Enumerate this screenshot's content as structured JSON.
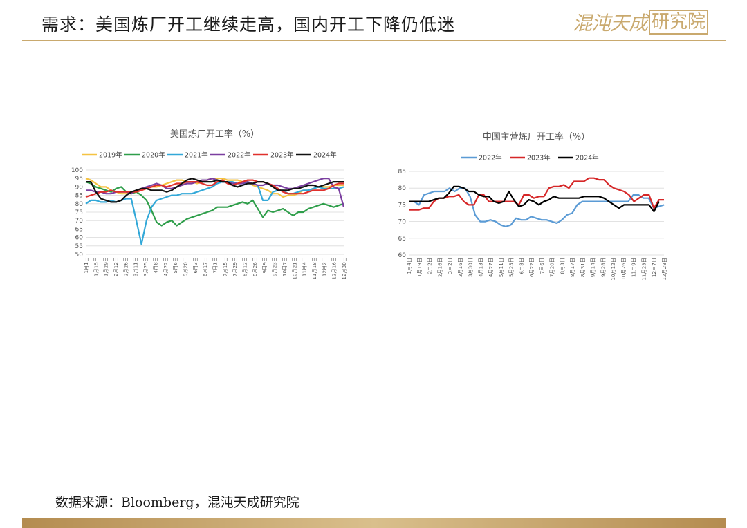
{
  "header": {
    "title": "需求：美国炼厂开工继续走高，国内开工下降仍低迷",
    "logo_text": "混沌天成",
    "logo_box_text": "研究院"
  },
  "footer": {
    "source": "数据来源：Bloomberg，混沌天成研究院"
  },
  "colors": {
    "accent": "#c9a96e"
  },
  "chart_data": [
    {
      "type": "line",
      "title": "美国炼厂开工率（%）",
      "ylim": [
        50,
        100
      ],
      "yticks": [
        50,
        55,
        60,
        65,
        70,
        75,
        80,
        85,
        90,
        95,
        100
      ],
      "x_tick_labels": [
        "1月1日",
        "1月15日",
        "1月29日",
        "2月12日",
        "2月26日",
        "3月11日",
        "3月25日",
        "4月8日",
        "4月22日",
        "5月6日",
        "5月20日",
        "6月3日",
        "6月17日",
        "7月1日",
        "7月15日",
        "7月29日",
        "8月12日",
        "8月26日",
        "9月9日",
        "9月23日",
        "10月7日",
        "10月21日",
        "11月4日",
        "11月18日",
        "12月2日",
        "12月16日",
        "12月30日"
      ],
      "grid": true,
      "legend_position": "top",
      "series": [
        {
          "name": "2019年",
          "color": "#f5c342",
          "values": [
            95,
            94,
            92,
            90,
            90,
            88,
            87,
            86,
            86,
            86,
            87,
            88,
            89,
            90,
            90,
            91,
            92,
            93,
            94,
            94,
            93,
            93,
            92,
            93,
            94,
            95,
            95,
            95,
            94,
            94,
            94,
            93,
            93,
            91,
            90,
            89,
            88,
            86,
            86,
            84,
            85,
            85,
            86,
            88,
            88,
            89,
            90,
            90,
            90,
            91,
            91,
            91
          ]
        },
        {
          "name": "2020年",
          "color": "#2e9e4a",
          "values": [
            93,
            92,
            90,
            89,
            88,
            87,
            89,
            90,
            87,
            86,
            87,
            85,
            82,
            76,
            69,
            67,
            69,
            70,
            67,
            69,
            71,
            72,
            73,
            74,
            75,
            76,
            78,
            78,
            78,
            79,
            80,
            81,
            80,
            82,
            77,
            72,
            76,
            75,
            76,
            77,
            75,
            73,
            75,
            75,
            77,
            78,
            79,
            80,
            79,
            78,
            79,
            80
          ]
        },
        {
          "name": "2021年",
          "color": "#32a8d8",
          "values": [
            80,
            82,
            82,
            81,
            81,
            82,
            81,
            82,
            83,
            83,
            70,
            56,
            70,
            78,
            82,
            83,
            84,
            85,
            85,
            86,
            86,
            86,
            87,
            88,
            89,
            90,
            92,
            93,
            93,
            93,
            92,
            92,
            92,
            92,
            91,
            82,
            82,
            87,
            88,
            88,
            86,
            86,
            87,
            88,
            88,
            89,
            90,
            89,
            89,
            89,
            89,
            90
          ]
        },
        {
          "name": "2022年",
          "color": "#7b3fa0",
          "values": [
            88,
            88,
            87,
            87,
            86,
            86,
            87,
            87,
            87,
            86,
            88,
            89,
            90,
            91,
            92,
            91,
            89,
            89,
            90,
            91,
            92,
            92,
            93,
            94,
            94,
            95,
            94,
            93,
            93,
            92,
            92,
            92,
            93,
            92,
            91,
            91,
            92,
            91,
            91,
            90,
            89,
            89,
            90,
            91,
            92,
            93,
            94,
            95,
            95,
            90,
            89,
            78
          ]
        },
        {
          "name": "2023年",
          "color": "#e0302c",
          "values": [
            84,
            85,
            86,
            87,
            87,
            88,
            87,
            87,
            87,
            87,
            87,
            88,
            89,
            90,
            91,
            91,
            90,
            91,
            92,
            92,
            93,
            93,
            93,
            92,
            91,
            91,
            93,
            94,
            92,
            91,
            92,
            93,
            94,
            94,
            93,
            93,
            92,
            91,
            89,
            87,
            86,
            86,
            86,
            86,
            87,
            88,
            88,
            88,
            89,
            91,
            92,
            92
          ]
        },
        {
          "name": "2024年",
          "color": "#111111",
          "values": [
            93,
            93,
            87,
            83,
            82,
            81,
            81,
            82,
            85,
            87,
            88,
            89,
            89,
            88,
            88,
            88,
            87,
            88,
            90,
            92,
            94,
            95,
            94,
            93,
            93,
            93,
            94,
            93,
            93,
            91,
            90,
            91,
            92,
            92,
            93,
            93,
            92,
            90,
            88,
            88,
            88,
            89,
            89,
            90,
            91,
            91,
            90,
            91,
            92,
            93,
            93,
            93
          ]
        }
      ]
    },
    {
      "type": "line",
      "title": "中国主营炼厂开工率（%）",
      "ylim": [
        60,
        85
      ],
      "yticks": [
        60,
        65,
        70,
        75,
        80,
        85
      ],
      "x_tick_labels": [
        "1月4日",
        "1月19日",
        "2月2日",
        "2月16日",
        "3月2日",
        "3月16日",
        "3月30日",
        "4月13日",
        "4月27日",
        "5月11日",
        "5月25日",
        "6月8日",
        "6月22日",
        "7月6日",
        "7月20日",
        "8月3日",
        "8月17日",
        "8月31日",
        "9月14日",
        "9月28日",
        "10月12日",
        "10月26日",
        "11月9日",
        "11月23日",
        "12月7日",
        "12月28日"
      ],
      "grid": true,
      "legend_position": "top",
      "series": [
        {
          "name": "2022年",
          "color": "#5b9bd5",
          "values": [
            76,
            76,
            75,
            78,
            78.5,
            79,
            79,
            79,
            80,
            79,
            80,
            80,
            77.5,
            72,
            70,
            70,
            70.5,
            70,
            69,
            68.5,
            69,
            71,
            70.5,
            70.5,
            71.5,
            71,
            70.5,
            70.5,
            70,
            69.5,
            70.5,
            72,
            72.5,
            75,
            76,
            76,
            76,
            76,
            76,
            76,
            76,
            76,
            76,
            76,
            78,
            78,
            77,
            77,
            74,
            74.5,
            75
          ]
        },
        {
          "name": "2023年",
          "color": "#d62728",
          "values": [
            73.5,
            73.5,
            73.5,
            74,
            74,
            76,
            77,
            77,
            77.5,
            77.5,
            78,
            76,
            75,
            75,
            78,
            78,
            76,
            76,
            76,
            76,
            76,
            76,
            75,
            78,
            78,
            77,
            77.5,
            77.5,
            80,
            80.5,
            80.5,
            81,
            80,
            82,
            82,
            82,
            83,
            83,
            82.5,
            82.5,
            81,
            80,
            79.5,
            79,
            78,
            76,
            77,
            78,
            78,
            74,
            76.5,
            76.5
          ]
        },
        {
          "name": "2024年",
          "color": "#000000",
          "values": [
            76,
            76,
            76,
            76,
            76,
            76.5,
            77,
            77,
            78.5,
            80.5,
            80.5,
            80,
            79,
            79,
            78,
            77.5,
            77.5,
            76,
            75.5,
            76,
            79,
            76.5,
            74.5,
            75,
            76.5,
            76,
            75,
            76,
            76.5,
            77.5,
            77,
            77,
            77,
            77,
            77,
            77.5,
            77.5,
            77.5,
            77.5,
            77,
            76,
            75,
            74,
            75,
            75,
            75,
            75,
            75,
            75,
            73,
            76,
            null
          ]
        }
      ]
    }
  ]
}
